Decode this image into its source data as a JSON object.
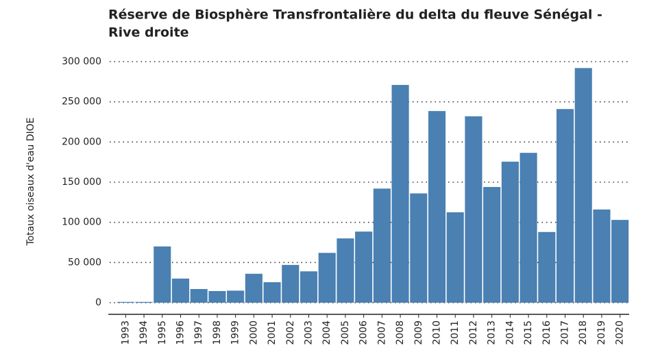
{
  "chart_data": {
    "type": "bar",
    "title": "Réserve de Biosphère Transfrontalière du delta du fleuve Sénégal -",
    "title_line2": "Rive droite",
    "y_label": "Totaux oiseaux d'eau DIOE",
    "categories": [
      "1993",
      "1994",
      "1995",
      "1996",
      "1997",
      "1998",
      "1999",
      "2000",
      "2001",
      "2002",
      "2003",
      "2004",
      "2005",
      "2006",
      "2007",
      "2008",
      "2009",
      "2010",
      "2011",
      "2012",
      "2013",
      "2014",
      "2015",
      "2016",
      "2017",
      "2018",
      "2019",
      "2020"
    ],
    "values": [
      1000,
      1000,
      70000,
      30000,
      17000,
      14500,
      15000,
      36000,
      25500,
      47000,
      39000,
      62000,
      80000,
      88500,
      142000,
      271000,
      136000,
      238500,
      112500,
      232000,
      144000,
      175500,
      186500,
      88000,
      241000,
      292000,
      116000,
      103000
    ],
    "color": "#4a80b2",
    "ylim": [
      0,
      300000
    ],
    "yticks": [
      0,
      {
        "value": 50000,
        "label": "50 000"
      },
      {
        "value": 100000,
        "label": "100 000"
      },
      {
        "value": 150000,
        "label": "150 000"
      },
      {
        "value": 200000,
        "label": "200 000"
      },
      {
        "value": 250000,
        "label": "250 000"
      },
      {
        "value": 300000,
        "label": "300 000"
      }
    ],
    "grid": true
  }
}
